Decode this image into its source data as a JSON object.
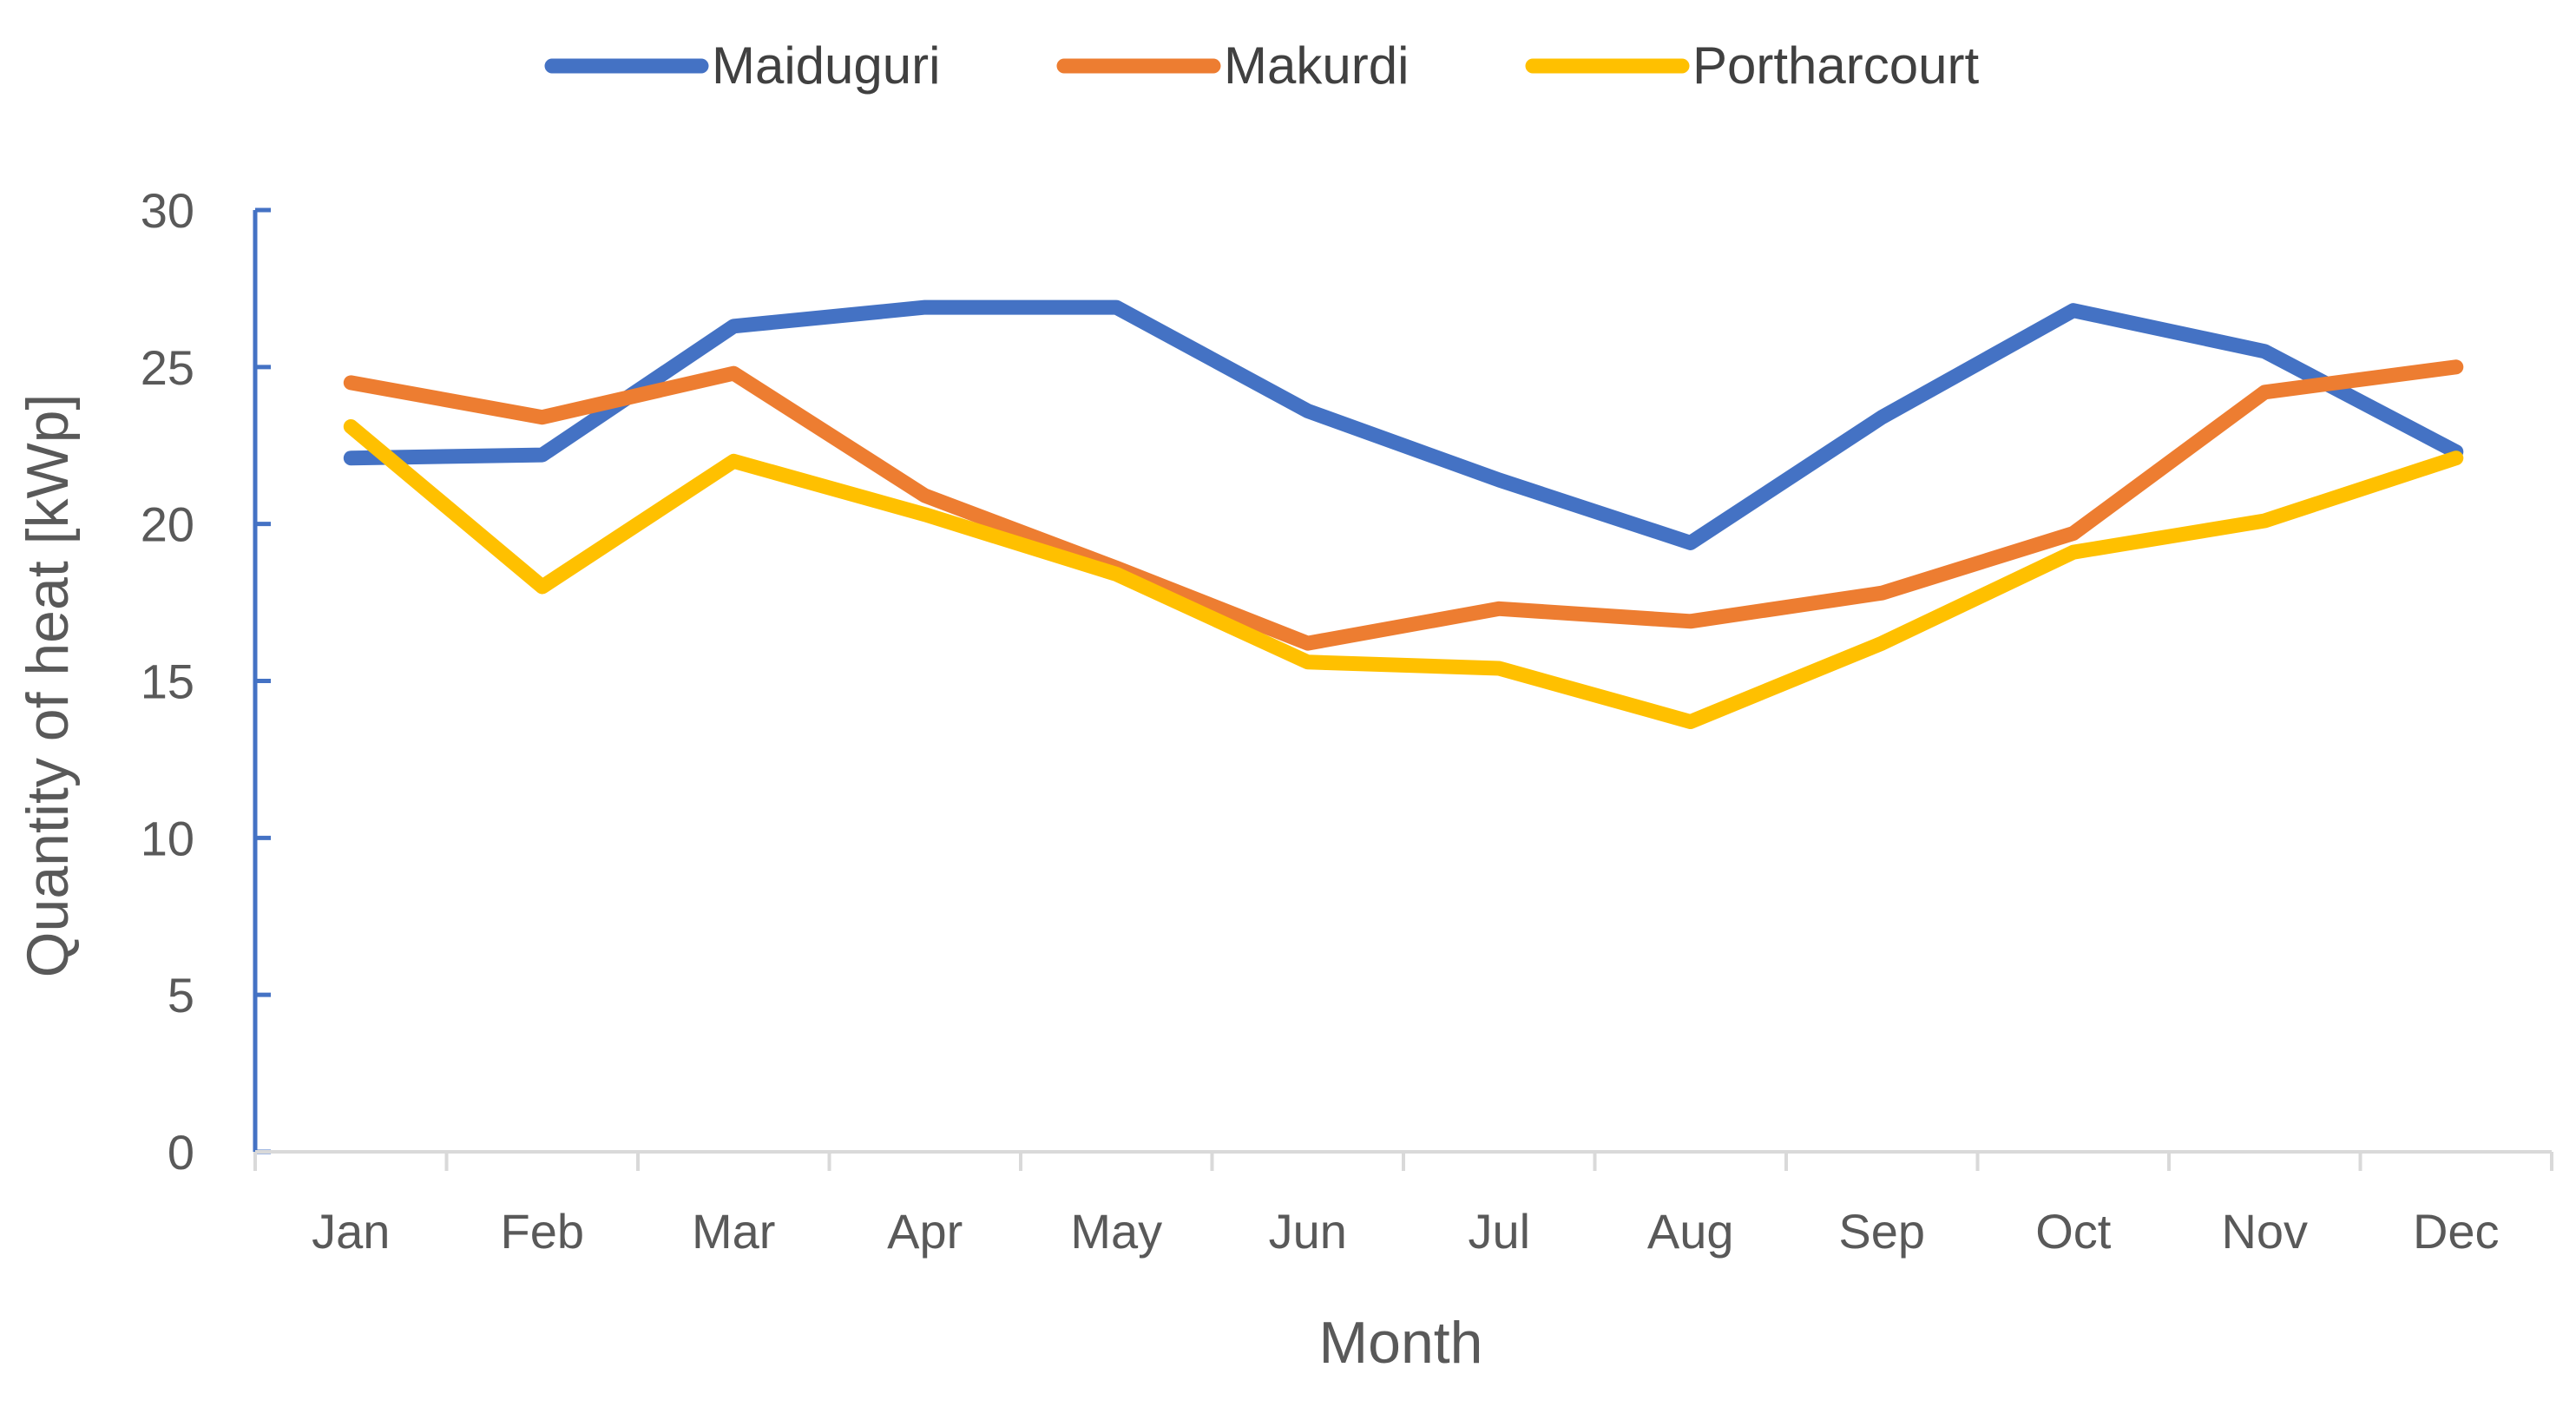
{
  "chart_data": {
    "type": "line",
    "categories": [
      "Jan",
      "Feb",
      "Mar",
      "Apr",
      "May",
      "Jun",
      "Jul",
      "Aug",
      "Sep",
      "Oct",
      "Nov",
      "Dec"
    ],
    "series": [
      {
        "name": "Maiduguri",
        "color": "#4472C4",
        "values": [
          22.1,
          22.2,
          26.3,
          26.9,
          26.9,
          23.6,
          21.4,
          19.4,
          23.4,
          26.8,
          25.5,
          22.3
        ]
      },
      {
        "name": "Makurdi",
        "color": "#ED7D31",
        "values": [
          24.5,
          23.4,
          24.8,
          20.9,
          18.6,
          16.2,
          17.3,
          16.9,
          17.8,
          19.7,
          24.2,
          25.0
        ]
      },
      {
        "name": "Portharcourt",
        "color": "#FFC000",
        "values": [
          23.1,
          18.0,
          22.0,
          20.3,
          18.4,
          15.6,
          15.4,
          13.7,
          16.2,
          19.1,
          20.1,
          22.1
        ]
      }
    ],
    "xlabel": "Month",
    "ylabel": "Quantity of heat [kWp]",
    "ylim": [
      0,
      30
    ],
    "yticks": [
      "0",
      "5",
      "10",
      "15",
      "20",
      "25",
      "30"
    ],
    "grid": false,
    "legend_position": "top-center",
    "axis_color": "#4472C4"
  }
}
